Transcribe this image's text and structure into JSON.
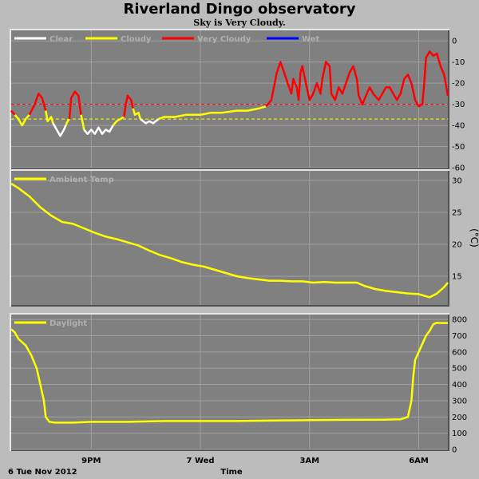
{
  "title": "Riverland Dingo observatory",
  "subtitle": "Sky is Very Cloudy.",
  "footer": {
    "date_label": "6 Tue Nov 2012",
    "time_label": "Time"
  },
  "x_ticks": [
    "9PM",
    "7 Wed",
    "3AM",
    "6AM"
  ],
  "colors": {
    "background": "#bcbcbc",
    "panel": "#808080",
    "grid": "#a0a0a0",
    "clear": "#ffffff",
    "cloudy": "#ffff00",
    "very_cloudy": "#ff0000",
    "wet": "#0000ff"
  },
  "chart_data": [
    {
      "type": "line",
      "name": "sky",
      "legend": [
        "Clear",
        "Cloudy",
        "Very Cloudy",
        "Wet"
      ],
      "ylabel": "",
      "ylim": [
        -60,
        5
      ],
      "yticks": [
        0,
        -10,
        -20,
        -30,
        -40,
        -50,
        -60
      ],
      "threshold_lines": [
        -30,
        -37
      ],
      "x_range": [
        18.8,
        30.8
      ],
      "segments": [
        {
          "class": "Very Cloudy",
          "points": [
            [
              18.8,
              -33
            ],
            [
              18.9,
              -35
            ]
          ]
        },
        {
          "class": "Cloudy",
          "points": [
            [
              18.9,
              -35
            ],
            [
              19.0,
              -37
            ],
            [
              19.1,
              -40
            ],
            [
              19.2,
              -37
            ],
            [
              19.3,
              -35
            ]
          ]
        },
        {
          "class": "Very Cloudy",
          "points": [
            [
              19.3,
              -35
            ],
            [
              19.45,
              -30
            ],
            [
              19.55,
              -25
            ],
            [
              19.65,
              -27
            ],
            [
              19.75,
              -33
            ]
          ]
        },
        {
          "class": "Cloudy",
          "points": [
            [
              19.75,
              -33
            ],
            [
              19.8,
              -38
            ],
            [
              19.9,
              -36
            ],
            [
              19.95,
              -39
            ]
          ]
        },
        {
          "class": "Clear",
          "points": [
            [
              19.95,
              -39
            ],
            [
              20.05,
              -42
            ],
            [
              20.15,
              -45
            ],
            [
              20.25,
              -42
            ],
            [
              20.3,
              -40
            ]
          ]
        },
        {
          "class": "Cloudy",
          "points": [
            [
              20.3,
              -40
            ],
            [
              20.35,
              -38
            ],
            [
              20.4,
              -37
            ]
          ]
        },
        {
          "class": "Very Cloudy",
          "points": [
            [
              20.4,
              -37
            ],
            [
              20.45,
              -27
            ],
            [
              20.55,
              -24
            ],
            [
              20.65,
              -26
            ],
            [
              20.72,
              -35
            ]
          ]
        },
        {
          "class": "Cloudy",
          "points": [
            [
              20.72,
              -35
            ],
            [
              20.78,
              -40
            ],
            [
              20.8,
              -42
            ]
          ]
        },
        {
          "class": "Clear",
          "points": [
            [
              20.8,
              -42
            ],
            [
              20.9,
              -44
            ],
            [
              21.0,
              -42
            ],
            [
              21.1,
              -44
            ],
            [
              21.2,
              -41
            ],
            [
              21.3,
              -44
            ],
            [
              21.4,
              -42
            ],
            [
              21.5,
              -43
            ],
            [
              21.6,
              -40
            ]
          ]
        },
        {
          "class": "Cloudy",
          "points": [
            [
              21.6,
              -40
            ],
            [
              21.7,
              -38
            ],
            [
              21.8,
              -37
            ],
            [
              21.9,
              -36
            ]
          ]
        },
        {
          "class": "Very Cloudy",
          "points": [
            [
              21.9,
              -36
            ],
            [
              21.95,
              -30
            ],
            [
              22.0,
              -26
            ],
            [
              22.1,
              -28
            ],
            [
              22.15,
              -32
            ]
          ]
        },
        {
          "class": "Cloudy",
          "points": [
            [
              22.15,
              -32
            ],
            [
              22.2,
              -35
            ],
            [
              22.3,
              -34
            ],
            [
              22.35,
              -37
            ]
          ]
        },
        {
          "class": "Clear",
          "points": [
            [
              22.35,
              -37
            ],
            [
              22.5,
              -39
            ],
            [
              22.6,
              -38
            ],
            [
              22.7,
              -39
            ],
            [
              22.85,
              -37
            ]
          ]
        },
        {
          "class": "Cloudy",
          "points": [
            [
              22.85,
              -37
            ],
            [
              23.0,
              -36
            ],
            [
              23.3,
              -36
            ],
            [
              23.6,
              -35
            ],
            [
              24.0,
              -35
            ],
            [
              24.3,
              -34
            ],
            [
              24.6,
              -34
            ],
            [
              25.0,
              -33
            ],
            [
              25.3,
              -33
            ],
            [
              25.6,
              -32
            ],
            [
              25.8,
              -31
            ]
          ]
        },
        {
          "class": "Very Cloudy",
          "points": [
            [
              25.8,
              -31
            ],
            [
              25.95,
              -28
            ],
            [
              26.1,
              -15
            ],
            [
              26.2,
              -10
            ],
            [
              26.3,
              -15
            ],
            [
              26.4,
              -20
            ],
            [
              26.5,
              -25
            ],
            [
              26.55,
              -18
            ],
            [
              26.65,
              -22
            ],
            [
              26.7,
              -28
            ],
            [
              26.75,
              -15
            ],
            [
              26.8,
              -12
            ],
            [
              26.9,
              -20
            ],
            [
              27.0,
              -28
            ],
            [
              27.1,
              -25
            ],
            [
              27.2,
              -20
            ],
            [
              27.3,
              -25
            ],
            [
              27.35,
              -18
            ],
            [
              27.45,
              -10
            ],
            [
              27.55,
              -12
            ],
            [
              27.6,
              -25
            ],
            [
              27.7,
              -28
            ],
            [
              27.8,
              -22
            ],
            [
              27.9,
              -25
            ],
            [
              28.0,
              -20
            ],
            [
              28.1,
              -15
            ],
            [
              28.2,
              -12
            ],
            [
              28.3,
              -18
            ],
            [
              28.35,
              -26
            ],
            [
              28.45,
              -30
            ],
            [
              28.55,
              -26
            ],
            [
              28.65,
              -22
            ],
            [
              28.75,
              -25
            ],
            [
              28.9,
              -28
            ],
            [
              29.0,
              -25
            ],
            [
              29.1,
              -22
            ],
            [
              29.2,
              -22
            ],
            [
              29.3,
              -25
            ],
            [
              29.4,
              -28
            ],
            [
              29.5,
              -25
            ],
            [
              29.6,
              -18
            ],
            [
              29.7,
              -16
            ],
            [
              29.8,
              -20
            ],
            [
              29.9,
              -28
            ],
            [
              30.0,
              -31
            ],
            [
              30.1,
              -30
            ],
            [
              30.15,
              -20
            ],
            [
              30.2,
              -8
            ],
            [
              30.3,
              -5
            ],
            [
              30.4,
              -7
            ],
            [
              30.5,
              -6
            ],
            [
              30.6,
              -12
            ],
            [
              30.7,
              -16
            ],
            [
              30.8,
              -26
            ]
          ]
        },
        {
          "class": "Wet",
          "points": []
        }
      ]
    },
    {
      "type": "line",
      "name": "temp",
      "legend": [
        "Ambient Temp"
      ],
      "ylabel": "(°C)",
      "ylim": [
        10.5,
        31.5
      ],
      "yticks": [
        15,
        20,
        25,
        30
      ],
      "series": [
        {
          "name": "Ambient Temp",
          "color": "#ffff00",
          "points": [
            [
              18.8,
              29.5
            ],
            [
              19.0,
              28.8
            ],
            [
              19.3,
              27.5
            ],
            [
              19.6,
              25.8
            ],
            [
              19.9,
              24.5
            ],
            [
              20.2,
              23.5
            ],
            [
              20.5,
              23.2
            ],
            [
              20.8,
              22.5
            ],
            [
              21.1,
              21.8
            ],
            [
              21.4,
              21.2
            ],
            [
              21.7,
              20.8
            ],
            [
              22.0,
              20.3
            ],
            [
              22.3,
              19.8
            ],
            [
              22.6,
              19.0
            ],
            [
              22.9,
              18.3
            ],
            [
              23.2,
              17.8
            ],
            [
              23.5,
              17.2
            ],
            [
              23.8,
              16.8
            ],
            [
              24.1,
              16.5
            ],
            [
              24.4,
              16.0
            ],
            [
              24.7,
              15.5
            ],
            [
              25.0,
              15.0
            ],
            [
              25.3,
              14.7
            ],
            [
              25.6,
              14.5
            ],
            [
              25.9,
              14.3
            ],
            [
              26.2,
              14.3
            ],
            [
              26.5,
              14.2
            ],
            [
              26.8,
              14.2
            ],
            [
              27.1,
              14.0
            ],
            [
              27.4,
              14.1
            ],
            [
              27.7,
              14.0
            ],
            [
              28.0,
              14.0
            ],
            [
              28.3,
              14.0
            ],
            [
              28.5,
              13.5
            ],
            [
              28.8,
              13.0
            ],
            [
              29.1,
              12.7
            ],
            [
              29.4,
              12.5
            ],
            [
              29.7,
              12.3
            ],
            [
              30.0,
              12.2
            ],
            [
              30.3,
              11.7
            ],
            [
              30.5,
              12.3
            ],
            [
              30.7,
              13.3
            ],
            [
              30.8,
              14.0
            ]
          ]
        }
      ]
    },
    {
      "type": "line",
      "name": "daylight",
      "legend": [
        "Daylight"
      ],
      "ylabel": "",
      "ylim": [
        0,
        830
      ],
      "yticks": [
        0,
        100,
        200,
        300,
        400,
        500,
        600,
        700,
        800
      ],
      "series": [
        {
          "name": "Daylight",
          "color": "#ffff00",
          "points": [
            [
              18.8,
              740
            ],
            [
              18.9,
              720
            ],
            [
              19.0,
              680
            ],
            [
              19.2,
              640
            ],
            [
              19.35,
              580
            ],
            [
              19.5,
              500
            ],
            [
              19.6,
              400
            ],
            [
              19.7,
              300
            ],
            [
              19.75,
              200
            ],
            [
              19.85,
              170
            ],
            [
              20.0,
              165
            ],
            [
              20.5,
              165
            ],
            [
              21.0,
              170
            ],
            [
              22.0,
              170
            ],
            [
              23.0,
              175
            ],
            [
              24.0,
              175
            ],
            [
              25.0,
              175
            ],
            [
              26.0,
              178
            ],
            [
              27.0,
              180
            ],
            [
              28.0,
              182
            ],
            [
              29.0,
              183
            ],
            [
              29.5,
              185
            ],
            [
              29.7,
              200
            ],
            [
              29.8,
              300
            ],
            [
              29.85,
              450
            ],
            [
              29.9,
              550
            ],
            [
              30.0,
              600
            ],
            [
              30.1,
              650
            ],
            [
              30.2,
              700
            ],
            [
              30.3,
              730
            ],
            [
              30.4,
              770
            ],
            [
              30.5,
              780
            ],
            [
              30.6,
              778
            ],
            [
              30.8,
              778
            ]
          ]
        }
      ]
    }
  ]
}
